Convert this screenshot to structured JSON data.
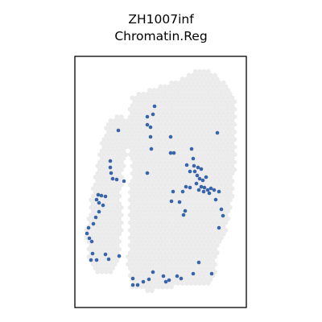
{
  "title_line1": "ZH1007inf",
  "title_line2": "Chromatin.Reg",
  "colors": {
    "background_spot": "#ebebeb",
    "highlight_spot": "#3a64a9",
    "frame": "#000000"
  },
  "chart_data": {
    "type": "scatter",
    "title": "ZH1007inf\nChromatin.Reg",
    "xlabel": "",
    "ylabel": "",
    "axes_ticks": "hidden",
    "grid": false,
    "legend": "none",
    "series": [
      {
        "name": "",
        "role": "background",
        "color": "#ebebeb",
        "points": []
      },
      {
        "name": "",
        "role": "highlighted",
        "color": "#3a64a9",
        "points": [
          [
            147,
            162
          ],
          [
            192,
            132
          ],
          [
            190,
            142
          ],
          [
            183,
            145
          ],
          [
            183,
            155
          ],
          [
            187,
            158
          ],
          [
            187,
            170
          ],
          [
            188,
            185
          ],
          [
            212,
            170
          ],
          [
            212,
            190
          ],
          [
            216,
            190
          ],
          [
            270,
            165
          ],
          [
            238,
            185
          ],
          [
            240,
            197
          ],
          [
            241,
            206
          ],
          [
            232,
            205
          ],
          [
            236,
            213
          ],
          [
            242,
            213
          ],
          [
            246,
            208
          ],
          [
            250,
            210
          ],
          [
            245,
            218
          ],
          [
            248,
            222
          ],
          [
            252,
            224
          ],
          [
            256,
            220
          ],
          [
            244,
            228
          ],
          [
            250,
            232
          ],
          [
            254,
            233
          ],
          [
            258,
            236
          ],
          [
            262,
            234
          ],
          [
            266,
            236
          ],
          [
            260,
            240
          ],
          [
            253,
            238
          ],
          [
            247,
            236
          ],
          [
            236,
            233
          ],
          [
            231,
            232
          ],
          [
            227,
            238
          ],
          [
            215,
            238
          ],
          [
            213,
            250
          ],
          [
            223,
            251
          ],
          [
            230,
            262
          ],
          [
            228,
            267
          ],
          [
            272,
            238
          ],
          [
            268,
            248
          ],
          [
            275,
            260
          ],
          [
            277,
            268
          ],
          [
            272,
            283
          ],
          [
            183,
            215
          ],
          [
            154,
            225
          ],
          [
            137,
            200
          ],
          [
            137,
            208
          ],
          [
            138,
            215
          ],
          [
            140,
            222
          ],
          [
            145,
            223
          ],
          [
            122,
            242
          ],
          [
            126,
            243
          ],
          [
            131,
            244
          ],
          [
            120,
            248
          ],
          [
            123,
            252
          ],
          [
            128,
            255
          ],
          [
            123,
            263
          ],
          [
            119,
            270
          ],
          [
            116,
            278
          ],
          [
            110,
            283
          ],
          [
            108,
            290
          ],
          [
            111,
            296
          ],
          [
            114,
            300
          ],
          [
            115,
            315
          ],
          [
            113,
            323
          ],
          [
            120,
            323
          ],
          [
            131,
            316
          ],
          [
            135,
            322
          ],
          [
            148,
            318
          ],
          [
            165,
            346
          ],
          [
            165,
            354
          ],
          [
            171,
            354
          ],
          [
            178,
            350
          ],
          [
            185,
            347
          ],
          [
            190,
            338
          ],
          [
            203,
            343
          ],
          [
            206,
            350
          ],
          [
            210,
            348
          ],
          [
            220,
            343
          ],
          [
            225,
            346
          ],
          [
            240,
            340
          ],
          [
            247,
            326
          ],
          [
            263,
            340
          ]
        ]
      }
    ]
  }
}
